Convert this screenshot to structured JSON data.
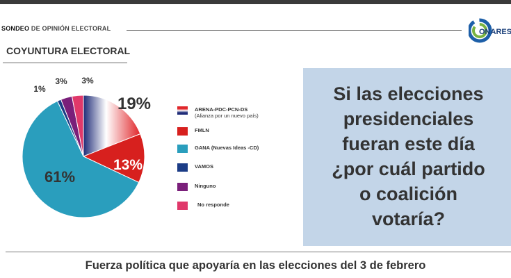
{
  "header": {
    "survey_strong": "SONDEO",
    "survey_rest": " DE OPINIÓN ELECTORAL",
    "logo_text": "ONARES"
  },
  "section_title": "COYUNTURA ELECTORAL",
  "question": [
    "Si las elecciones",
    "presidenciales",
    "fueran este día",
    "¿por cuál partido",
    "o coalición",
    "votaría?"
  ],
  "footer_title": "Fuerza política que apoyaría en las elecciones del 3 de febrero",
  "chart_data": {
    "type": "pie",
    "unit": "%",
    "slices": [
      {
        "label": "ARENA-PDC-PCN-DS (Alianza por un nuevo país)",
        "label_lines": [
          "ARENA-PDC-PCN-DS",
          "(Alianza por un nuevo país)"
        ],
        "value": 19,
        "display": "19%",
        "color": "#d9262b"
      },
      {
        "label": "FMLN",
        "label_lines": [
          "FMLN"
        ],
        "value": 13,
        "display": "13%",
        "color": "#d7201e"
      },
      {
        "label": "GANA (Nuevas Ideas -CD)",
        "label_lines": [
          "GANA (Nuevas Ideas -CD)"
        ],
        "value": 61,
        "display": "61%",
        "color": "#2a9ebd"
      },
      {
        "label": "VAMOS",
        "label_lines": [
          "VAMOS"
        ],
        "value": 1,
        "display": "1%",
        "color": "#1b3c86"
      },
      {
        "label": "Ninguno",
        "label_lines": [
          "Ninguno"
        ],
        "value": 3,
        "display": "3%",
        "color": "#7a1f7a"
      },
      {
        "label": "No responde",
        "label_lines": [
          "No responde"
        ],
        "value": 3,
        "display": "3%",
        "color": "#e0386a"
      }
    ]
  }
}
